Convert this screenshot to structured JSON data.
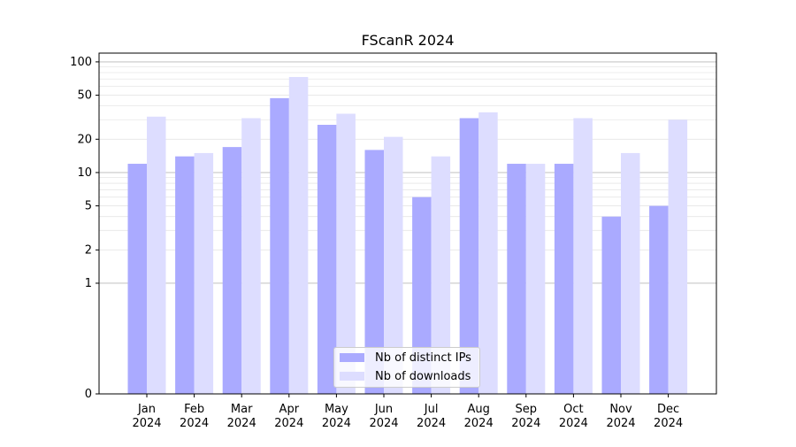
{
  "chart_data": {
    "type": "bar",
    "title": "FScanR 2024",
    "xlabel": "",
    "ylabel": "",
    "categories": [
      [
        "Jan",
        "2024"
      ],
      [
        "Feb",
        "2024"
      ],
      [
        "Mar",
        "2024"
      ],
      [
        "Apr",
        "2024"
      ],
      [
        "May",
        "2024"
      ],
      [
        "Jun",
        "2024"
      ],
      [
        "Jul",
        "2024"
      ],
      [
        "Aug",
        "2024"
      ],
      [
        "Sep",
        "2024"
      ],
      [
        "Oct",
        "2024"
      ],
      [
        "Nov",
        "2024"
      ],
      [
        "Dec",
        "2024"
      ]
    ],
    "series": [
      {
        "name": "Nb of distinct IPs",
        "color": "#aaaaff",
        "values": [
          12,
          14,
          17,
          47,
          27,
          16,
          6,
          31,
          12,
          12,
          4,
          5
        ]
      },
      {
        "name": "Nb of downloads",
        "color": "#ddddff",
        "values": [
          32,
          15,
          31,
          73,
          34,
          21,
          14,
          35,
          12,
          31,
          15,
          30
        ]
      }
    ],
    "yscale": "symlog",
    "yticks": [
      0,
      1,
      2,
      5,
      10,
      20,
      50,
      100
    ],
    "ylim": [
      0,
      120
    ],
    "grid": "y",
    "legend_position": "lower-center"
  }
}
